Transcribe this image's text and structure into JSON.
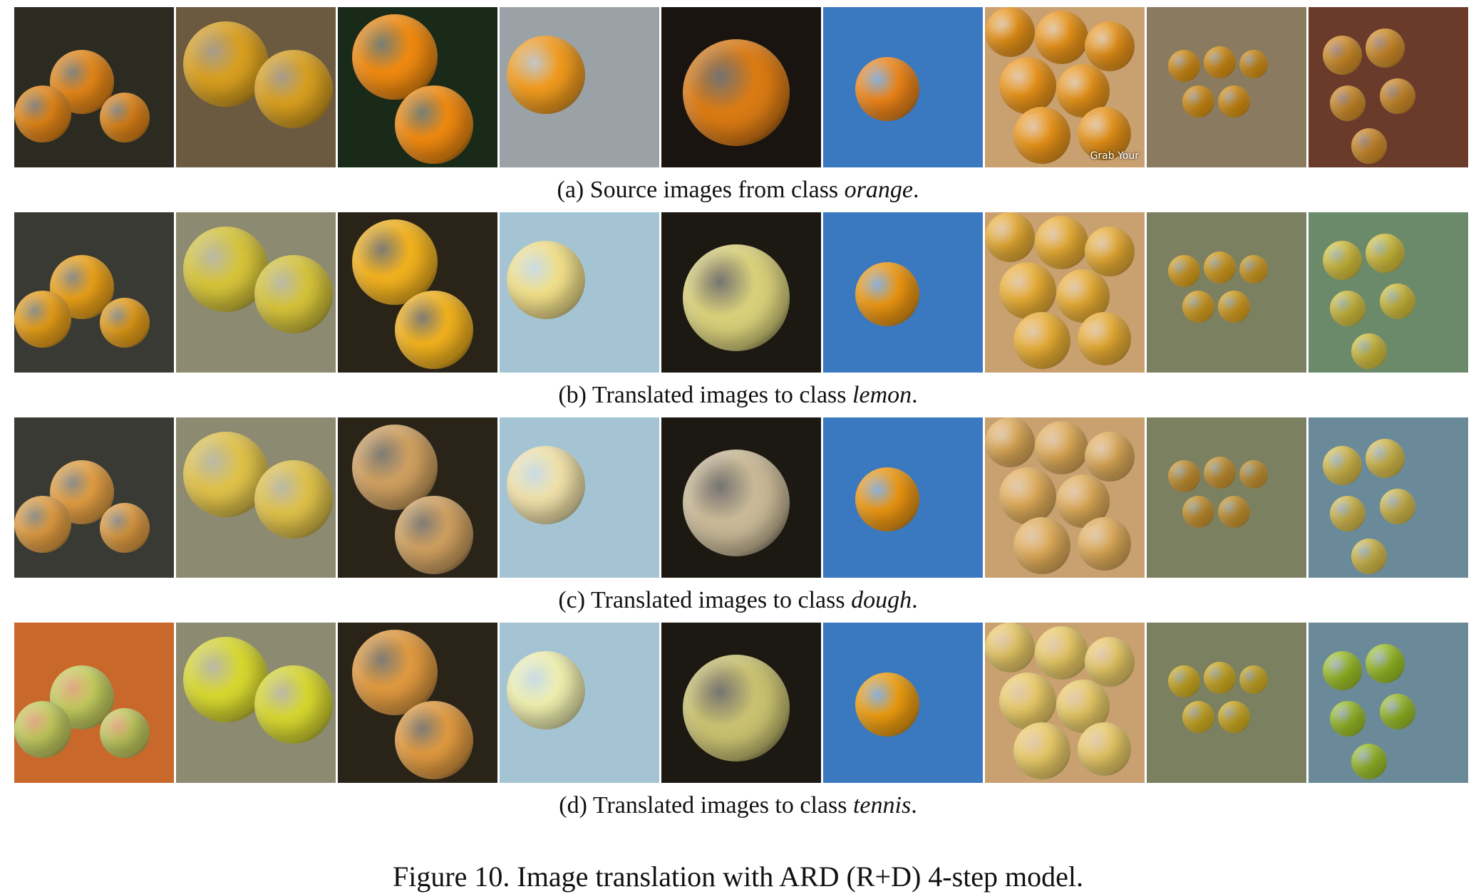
{
  "rows": [
    {
      "prefix": "(a) Source images from class ",
      "class_name": "orange",
      "suffix": ".",
      "palette": [
        "#e98a18",
        "#d9a020",
        "#f08a10",
        "#f29c1e",
        "#d97a14",
        "#f2881a",
        "#f39a1a",
        "#f0a012",
        "#e59a2a"
      ],
      "bgs": [
        "#2b2b22",
        "#6b5a40",
        "#1a2a18",
        "#9aa2a8",
        "#1a1410",
        "#3a78c0",
        "#c9a070",
        "#8a7a60",
        "#6a3a2a"
      ],
      "watermark": "Grab Your"
    },
    {
      "prefix": "(b) Translated images to class ",
      "class_name": "lemon",
      "suffix": ".",
      "palette": [
        "#f0a51a",
        "#d6c43a",
        "#f2b21e",
        "#f2e08a",
        "#d8cf7a",
        "#f29a12",
        "#f2b436",
        "#f2b21e",
        "#e6d040"
      ],
      "bgs": [
        "#3a3a34",
        "#8c8a70",
        "#2a2418",
        "#a4c4d4",
        "#1c1812",
        "#3a78c0",
        "#c9a070",
        "#7a8060",
        "#6a8a6a"
      ],
      "watermark": ""
    },
    {
      "prefix": "(c) Translated images to class ",
      "class_name": "dough",
      "suffix": ".",
      "palette": [
        "#e8a244",
        "#e0c24a",
        "#cfa060",
        "#f2e2aa",
        "#c8b896",
        "#f29a12",
        "#e8b25c",
        "#e0a432",
        "#e8cc50"
      ],
      "bgs": [
        "#3a3a34",
        "#8c8a70",
        "#2a2418",
        "#a4c4d4",
        "#1c1812",
        "#3a78c0",
        "#c9a070",
        "#7a8060",
        "#6a8a9a"
      ],
      "watermark": ""
    },
    {
      "prefix": "(d) Translated images to class ",
      "class_name": "tennis",
      "suffix": ".",
      "palette": [
        "#c8d060",
        "#d8d830",
        "#e09a40",
        "#f0f0b0",
        "#c8c070",
        "#f2a010",
        "#f2d26a",
        "#e8c020",
        "#a8d028"
      ],
      "bgs": [
        "#c8682a",
        "#8c8a70",
        "#2a2418",
        "#a4c4d4",
        "#1c1812",
        "#3a78c0",
        "#c9a070",
        "#7a8060",
        "#6a8a9a"
      ],
      "watermark": ""
    }
  ],
  "figure_caption": "Figure 10. Image translation with ARD (R+D) 4-step model."
}
